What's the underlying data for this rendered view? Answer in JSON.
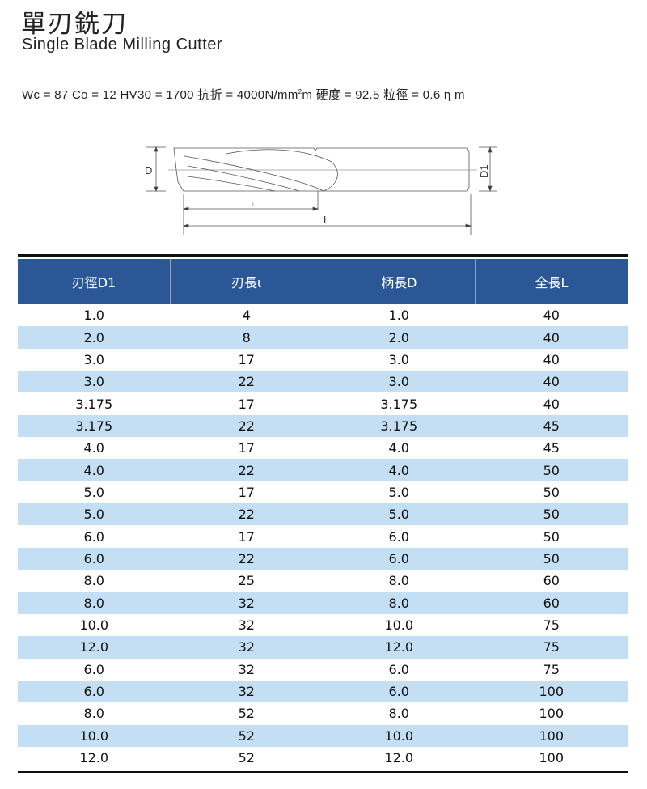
{
  "title": "單刃銑刀",
  "subtitle": "Single Blade Milling Cutter",
  "spec": {
    "pre": "Wc = 87 Co = 12 HV30 = 1700 抗折 = 4000N/mm",
    "sup": "2",
    "post": "m 硬度 = 92.5 粒徑 = 0.6 η m"
  },
  "drawing": {
    "label_d": "D",
    "label_d1": "D1",
    "label_l_small": "ι",
    "label_l": "L"
  },
  "table": {
    "headers": [
      "刃徑D1",
      "刃長ι",
      "柄長D",
      "全長L"
    ],
    "rows": [
      [
        "1.0",
        "4",
        "1.0",
        "40"
      ],
      [
        "2.0",
        "8",
        "2.0",
        "40"
      ],
      [
        "3.0",
        "17",
        "3.0",
        "40"
      ],
      [
        "3.0",
        "22",
        "3.0",
        "40"
      ],
      [
        "3.175",
        "17",
        "3.175",
        "40"
      ],
      [
        "3.175",
        "22",
        "3.175",
        "45"
      ],
      [
        "4.0",
        "17",
        "4.0",
        "45"
      ],
      [
        "4.0",
        "22",
        "4.0",
        "50"
      ],
      [
        "5.0",
        "17",
        "5.0",
        "50"
      ],
      [
        "5.0",
        "22",
        "5.0",
        "50"
      ],
      [
        "6.0",
        "17",
        "6.0",
        "50"
      ],
      [
        "6.0",
        "22",
        "6.0",
        "50"
      ],
      [
        "8.0",
        "25",
        "8.0",
        "60"
      ],
      [
        "8.0",
        "32",
        "8.0",
        "60"
      ],
      [
        "10.0",
        "32",
        "10.0",
        "75"
      ],
      [
        "12.0",
        "32",
        "12.0",
        "75"
      ],
      [
        "6.0",
        "32",
        "6.0",
        "75"
      ],
      [
        "6.0",
        "32",
        "6.0",
        "100"
      ],
      [
        "8.0",
        "52",
        "8.0",
        "100"
      ],
      [
        "10.0",
        "52",
        "10.0",
        "100"
      ],
      [
        "12.0",
        "52",
        "12.0",
        "100"
      ]
    ]
  },
  "colors": {
    "header": "#2b5797",
    "alt_row": "#c4dff3"
  }
}
